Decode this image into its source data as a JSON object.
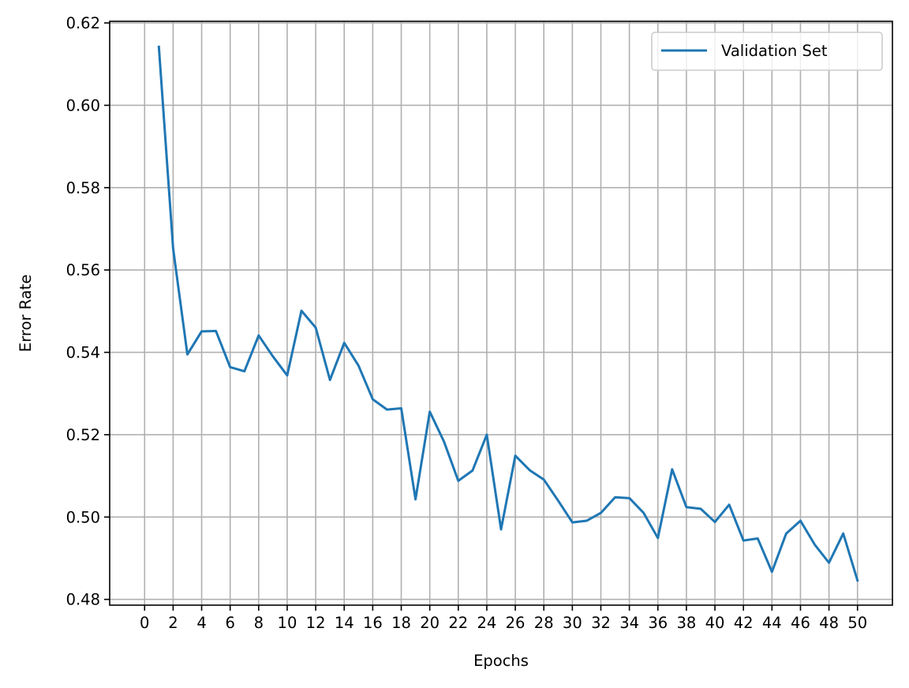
{
  "chart_data": {
    "type": "line",
    "xlabel": "Epochs",
    "ylabel": "Error Rate",
    "xlim": [
      -2.45,
      52.45
    ],
    "ylim": [
      0.4786,
      0.6204
    ],
    "grid": true,
    "legend_position": "upper-right",
    "x_ticks": [
      0,
      2,
      4,
      6,
      8,
      10,
      12,
      14,
      16,
      18,
      20,
      22,
      24,
      26,
      28,
      30,
      32,
      34,
      36,
      38,
      40,
      42,
      44,
      46,
      48,
      50
    ],
    "y_ticks": [
      0.48,
      0.5,
      0.52,
      0.54,
      0.56,
      0.58,
      0.6,
      0.62
    ],
    "y_tick_labels": [
      "0.48",
      "0.50",
      "0.52",
      "0.54",
      "0.56",
      "0.58",
      "0.60",
      "0.62"
    ],
    "series": [
      {
        "name": "Validation Set",
        "color": "#1f77b4",
        "x": [
          1,
          2,
          3,
          4,
          5,
          6,
          7,
          8,
          9,
          10,
          11,
          12,
          13,
          14,
          15,
          16,
          17,
          18,
          19,
          20,
          21,
          22,
          23,
          24,
          25,
          26,
          27,
          28,
          29,
          30,
          31,
          32,
          33,
          34,
          35,
          36,
          37,
          38,
          39,
          40,
          41,
          42,
          43,
          44,
          45,
          46,
          47,
          48,
          49,
          50
        ],
        "y": [
          0.6142,
          0.5652,
          0.5395,
          0.5451,
          0.5452,
          0.5364,
          0.5354,
          0.5441,
          0.539,
          0.5344,
          0.5501,
          0.546,
          0.5333,
          0.5423,
          0.5368,
          0.5286,
          0.5261,
          0.5264,
          0.5043,
          0.5256,
          0.5183,
          0.5088,
          0.5113,
          0.52,
          0.497,
          0.5149,
          0.5114,
          0.5091,
          0.504,
          0.4987,
          0.4991,
          0.501,
          0.5048,
          0.5046,
          0.501,
          0.4949,
          0.5116,
          0.5024,
          0.502,
          0.4988,
          0.503,
          0.4943,
          0.4948,
          0.4867,
          0.496,
          0.4991,
          0.4933,
          0.4889,
          0.496,
          0.4846
        ]
      }
    ]
  }
}
